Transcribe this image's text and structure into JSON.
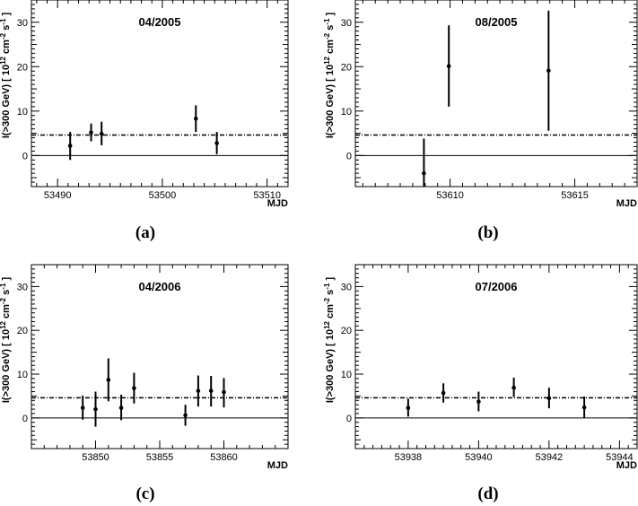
{
  "chart_data": [
    {
      "id": "a",
      "type": "scatter",
      "title": "04/2005",
      "caption": "(a)",
      "xlabel": "MJD",
      "ylabel_main": "I(>300 GeV) [ 10",
      "ylabel_exp1": "12",
      "ylabel_mid": " cm",
      "ylabel_exp2": "-2",
      "ylabel_s": " s",
      "ylabel_exp3": "-1",
      "ylabel_end": " ]",
      "xlim": [
        53487.5,
        53512
      ],
      "ylim": [
        -7,
        35
      ],
      "xticks": [
        53490,
        53500,
        53510
      ],
      "yticks": [
        0,
        10,
        20,
        30
      ],
      "reference_level": 4.6,
      "points": [
        {
          "x": 53491.2,
          "y": 2.2,
          "ylo": -1.0,
          "yhi": 5.3
        },
        {
          "x": 53493.2,
          "y": 5.2,
          "ylo": 3.2,
          "yhi": 7.2
        },
        {
          "x": 53494.2,
          "y": 4.9,
          "ylo": 2.3,
          "yhi": 7.6
        },
        {
          "x": 53503.2,
          "y": 8.3,
          "ylo": 5.3,
          "yhi": 11.3
        },
        {
          "x": 53505.2,
          "y": 2.8,
          "ylo": 0.3,
          "yhi": 5.3
        }
      ]
    },
    {
      "id": "b",
      "type": "scatter",
      "title": "08/2005",
      "caption": "(b)",
      "xlabel": "MJD",
      "ylabel_main": "I(>300 GeV) [ 10",
      "ylabel_exp1": "12",
      "ylabel_mid": " cm",
      "ylabel_exp2": "-2",
      "ylabel_s": " s",
      "ylabel_exp3": "-1",
      "ylabel_end": " ]",
      "xlim": [
        53606.2,
        53617.5
      ],
      "ylim": [
        -7,
        35
      ],
      "xticks": [
        53610,
        53615
      ],
      "yticks": [
        0,
        10,
        20,
        30
      ],
      "reference_level": 4.6,
      "points": [
        {
          "x": 53608.95,
          "y": -4.0,
          "ylo": -7.0,
          "yhi": 3.8
        },
        {
          "x": 53609.95,
          "y": 20.1,
          "ylo": 11.0,
          "yhi": 29.3
        },
        {
          "x": 53613.95,
          "y": 19.1,
          "ylo": 5.6,
          "yhi": 32.6
        }
      ]
    },
    {
      "id": "c",
      "type": "scatter",
      "title": "04/2006",
      "caption": "(c)",
      "xlabel": "MJD",
      "ylabel_main": "I(>300 GeV) [ 10",
      "ylabel_exp1": "12",
      "ylabel_mid": " cm",
      "ylabel_exp2": "-2",
      "ylabel_s": " s",
      "ylabel_exp3": "-1",
      "ylabel_end": " ]",
      "xlim": [
        53845,
        53865
      ],
      "ylim": [
        -7,
        35
      ],
      "xticks": [
        53850,
        53855,
        53860
      ],
      "yticks": [
        0,
        10,
        20,
        30
      ],
      "reference_level": 4.6,
      "points": [
        {
          "x": 53849.0,
          "y": 2.3,
          "ylo": -0.4,
          "yhi": 5.1
        },
        {
          "x": 53850.0,
          "y": 2.0,
          "ylo": -2.0,
          "yhi": 6.0
        },
        {
          "x": 53851.0,
          "y": 8.7,
          "ylo": 3.8,
          "yhi": 13.6
        },
        {
          "x": 53852.0,
          "y": 2.3,
          "ylo": -0.5,
          "yhi": 5.3
        },
        {
          "x": 53853.0,
          "y": 6.8,
          "ylo": 3.3,
          "yhi": 10.3
        },
        {
          "x": 53857.0,
          "y": 0.6,
          "ylo": -1.8,
          "yhi": 3.0
        },
        {
          "x": 53858.0,
          "y": 6.2,
          "ylo": 2.6,
          "yhi": 9.7
        },
        {
          "x": 53859.0,
          "y": 6.2,
          "ylo": 2.6,
          "yhi": 9.6
        },
        {
          "x": 53860.0,
          "y": 5.9,
          "ylo": 2.4,
          "yhi": 9.1
        }
      ]
    },
    {
      "id": "d",
      "type": "scatter",
      "title": "07/2006",
      "caption": "(d)",
      "xlabel": "MJD",
      "ylabel_main": "I(>300 GeV) [ 10",
      "ylabel_exp1": "12",
      "ylabel_mid": " cm",
      "ylabel_exp2": "-2",
      "ylabel_s": " s",
      "ylabel_exp3": "-1",
      "ylabel_end": " ]",
      "xlim": [
        53936.5,
        53944.5
      ],
      "ylim": [
        -7,
        35
      ],
      "xticks": [
        53938,
        53940,
        53942,
        53944
      ],
      "yticks": [
        0,
        10,
        20,
        30
      ],
      "reference_level": 4.6,
      "points": [
        {
          "x": 53938.0,
          "y": 2.3,
          "ylo": 0.3,
          "yhi": 4.4
        },
        {
          "x": 53939.0,
          "y": 5.7,
          "ylo": 3.5,
          "yhi": 7.9
        },
        {
          "x": 53940.0,
          "y": 3.7,
          "ylo": 1.5,
          "yhi": 6.0
        },
        {
          "x": 53941.0,
          "y": 6.9,
          "ylo": 4.8,
          "yhi": 9.2
        },
        {
          "x": 53942.0,
          "y": 4.5,
          "ylo": 2.2,
          "yhi": 6.9
        },
        {
          "x": 53943.0,
          "y": 2.4,
          "ylo": 0.0,
          "yhi": 4.9
        }
      ]
    }
  ]
}
